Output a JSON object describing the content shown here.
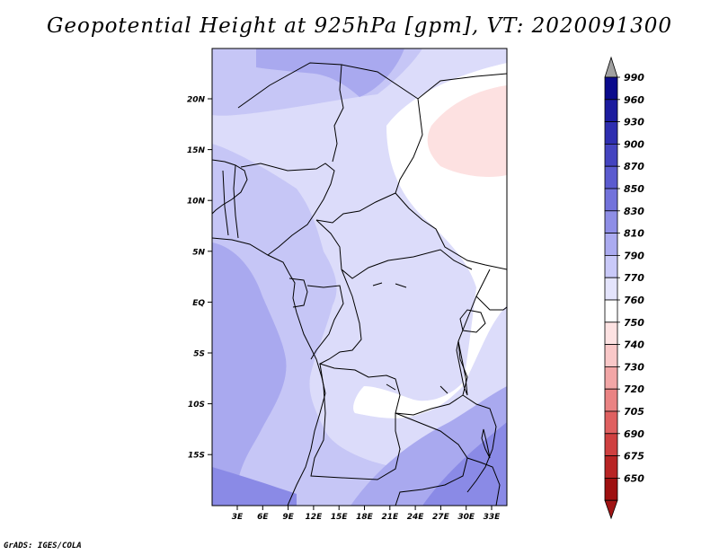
{
  "title": "Geopotential Height at 925hPa [gpm], VT: 2020091300",
  "credit": "GrADS: IGES/COLA",
  "map": {
    "lat_labels": [
      "20N",
      "15N",
      "10N",
      "5N",
      "EQ",
      "5S",
      "10S",
      "15S"
    ],
    "lon_labels": [
      "3E",
      "6E",
      "9E",
      "12E",
      "15E",
      "18E",
      "21E",
      "24E",
      "27E",
      "30E",
      "33E"
    ],
    "field_colors": {
      "very_light_blue": "#dcdcfa",
      "light_blue": "#c6c6f6",
      "mid_blue": "#a9a9ef",
      "deep_blue": "#8a8ae6",
      "white": "#ffffff",
      "light_pink": "#fde1e1"
    }
  },
  "colorbar": {
    "labels": [
      "990",
      "960",
      "930",
      "900",
      "870",
      "850",
      "830",
      "810",
      "790",
      "770",
      "760",
      "750",
      "740",
      "730",
      "720",
      "705",
      "690",
      "675",
      "650"
    ],
    "colors": [
      "#0a0a8c",
      "#1c1c9e",
      "#2e2eb0",
      "#4444c0",
      "#5b5bcf",
      "#7272db",
      "#8e8ee6",
      "#ababf0",
      "#c9c9f8",
      "#e4e4fc",
      "#ffffff",
      "#fde2e2",
      "#f9c8c8",
      "#f2a6a6",
      "#ea8383",
      "#df6060",
      "#cf4040",
      "#b82424",
      "#9e1010"
    ],
    "top_arrow_color": "#a0a0a0",
    "bottom_arrow_color": "#a01414"
  }
}
